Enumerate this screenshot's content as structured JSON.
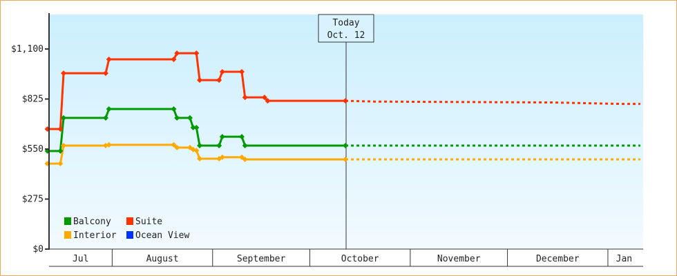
{
  "chart_data": {
    "type": "line",
    "title": "",
    "xlabel": "",
    "ylabel": "",
    "ylim": [
      0,
      1290
    ],
    "y_ticks": [
      {
        "value": 0,
        "label": "$0"
      },
      {
        "value": 275,
        "label": "$275"
      },
      {
        "value": 550,
        "label": "$550"
      },
      {
        "value": 825,
        "label": "$825"
      },
      {
        "value": 1100,
        "label": "$1,100"
      }
    ],
    "x_range": [
      "Jul 12",
      "Jan 11"
    ],
    "months": [
      {
        "label": "Jul",
        "start": "Jul 12",
        "end": "Aug 1"
      },
      {
        "label": "August",
        "start": "Aug 1",
        "end": "Sep 1"
      },
      {
        "label": "September",
        "start": "Sep 1",
        "end": "Oct 1"
      },
      {
        "label": "October",
        "start": "Oct 1",
        "end": "Nov 1"
      },
      {
        "label": "November",
        "start": "Nov 1",
        "end": "Dec 1"
      },
      {
        "label": "December",
        "start": "Dec 1",
        "end": "Jan 1"
      },
      {
        "label": "Jan",
        "start": "Jan 1",
        "end": "Jan 11"
      }
    ],
    "today": {
      "line1": "Today",
      "line2": "Oct. 12",
      "date": "Oct 12"
    },
    "grid": false,
    "legend_position": "bottom-left",
    "series": [
      {
        "name": "Balcony",
        "color": "#009900",
        "history": [
          [
            "Jul 12",
            539
          ],
          [
            "Jul 16",
            539
          ],
          [
            "Jul 17",
            721
          ],
          [
            "Jul 30",
            721
          ],
          [
            "Jul 31",
            770
          ],
          [
            "Aug 20",
            770
          ],
          [
            "Aug 21",
            721
          ],
          [
            "Aug 25",
            721
          ],
          [
            "Aug 26",
            668
          ],
          [
            "Aug 27",
            668
          ],
          [
            "Aug 28",
            569
          ],
          [
            "Sep 3",
            569
          ],
          [
            "Sep 4",
            618
          ],
          [
            "Sep 10",
            618
          ],
          [
            "Sep 11",
            569
          ],
          [
            "Oct 12",
            569
          ]
        ],
        "forecast": [
          [
            "Oct 12",
            569
          ],
          [
            "Jan 11",
            569
          ]
        ]
      },
      {
        "name": "Suite",
        "color": "#ff3300",
        "history": [
          [
            "Jul 12",
            660
          ],
          [
            "Jul 16",
            660
          ],
          [
            "Jul 17",
            967
          ],
          [
            "Jul 30",
            967
          ],
          [
            "Jul 31",
            1043
          ],
          [
            "Aug 20",
            1043
          ],
          [
            "Aug 21",
            1077
          ],
          [
            "Aug 27",
            1077
          ],
          [
            "Aug 28",
            929
          ],
          [
            "Sep 3",
            929
          ],
          [
            "Sep 4",
            975
          ],
          [
            "Sep 10",
            975
          ],
          [
            "Sep 11",
            834
          ],
          [
            "Sep 17",
            834
          ],
          [
            "Sep 18",
            815
          ],
          [
            "Oct 12",
            815
          ]
        ],
        "forecast": [
          [
            "Oct 12",
            815
          ],
          [
            "Oct 21",
            811
          ],
          [
            "Dec 15",
            806
          ],
          [
            "Jan 5",
            798
          ],
          [
            "Jan 11",
            798
          ]
        ]
      },
      {
        "name": "Interior",
        "color": "#ffaa00",
        "history": [
          [
            "Jul 12",
            470
          ],
          [
            "Jul 16",
            470
          ],
          [
            "Jul 17",
            569
          ],
          [
            "Jul 30",
            569
          ],
          [
            "Jul 31",
            573
          ],
          [
            "Aug 20",
            573
          ],
          [
            "Aug 21",
            558
          ],
          [
            "Aug 25",
            558
          ],
          [
            "Aug 26",
            547
          ],
          [
            "Aug 27",
            542
          ],
          [
            "Aug 28",
            497
          ],
          [
            "Sep 3",
            497
          ],
          [
            "Sep 4",
            505
          ],
          [
            "Sep 10",
            505
          ],
          [
            "Sep 11",
            493
          ],
          [
            "Oct 12",
            493
          ]
        ],
        "forecast": [
          [
            "Oct 12",
            493
          ],
          [
            "Jan 11",
            493
          ]
        ]
      },
      {
        "name": "Ocean View",
        "color": "#0033ff",
        "history": [],
        "forecast": []
      }
    ]
  }
}
